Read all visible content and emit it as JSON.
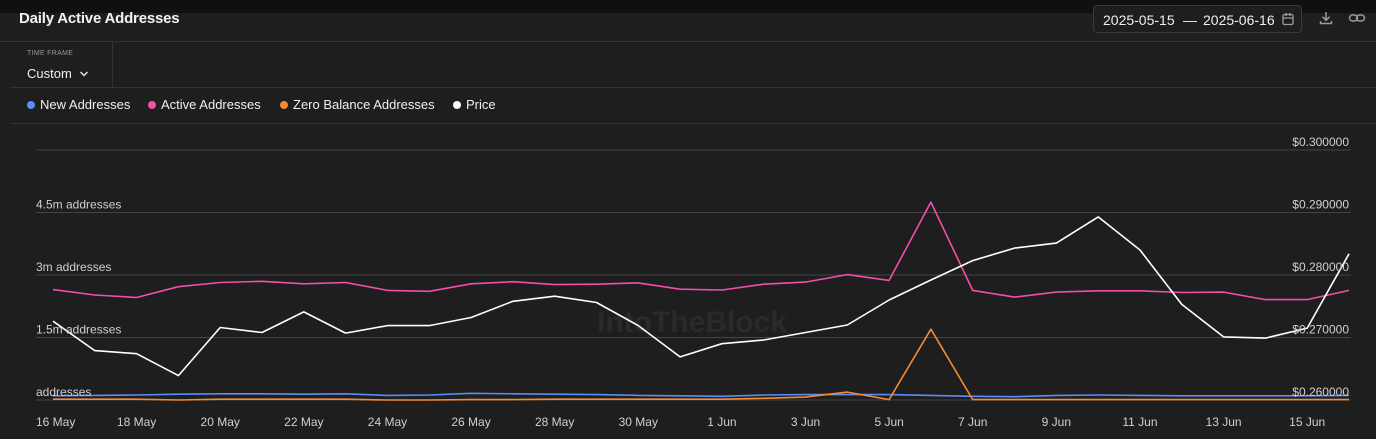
{
  "header": {
    "title": "Daily Active Addresses",
    "date_start": "2025-05-15",
    "date_separator": "—",
    "date_end": "2025-06-16",
    "icons": [
      "calendar-icon",
      "download-icon",
      "link-icon"
    ]
  },
  "timeframe": {
    "label": "TIME FRAME",
    "value": "Custom"
  },
  "legend": [
    {
      "name": "New Addresses",
      "color": "#5b8cf5"
    },
    {
      "name": "Active Addresses",
      "color": "#f24fa8"
    },
    {
      "name": "Zero Balance Addresses",
      "color": "#f58a33"
    },
    {
      "name": "Price",
      "color": "#ffffff"
    }
  ],
  "watermark": "IntoTheBlock",
  "chart_data": {
    "type": "line",
    "x": [
      "16 May",
      "17 May",
      "18 May",
      "19 May",
      "20 May",
      "21 May",
      "22 May",
      "23 May",
      "24 May",
      "25 May",
      "26 May",
      "27 May",
      "28 May",
      "29 May",
      "30 May",
      "31 May",
      "1 Jun",
      "2 Jun",
      "3 Jun",
      "4 Jun",
      "5 Jun",
      "6 Jun",
      "7 Jun",
      "8 Jun",
      "9 Jun",
      "10 Jun",
      "11 Jun",
      "12 Jun",
      "13 Jun",
      "14 Jun",
      "15 Jun",
      "16 Jun"
    ],
    "x_tick_labels": [
      "16 May",
      "18 May",
      "20 May",
      "22 May",
      "24 May",
      "26 May",
      "28 May",
      "30 May",
      "1 Jun",
      "3 Jun",
      "5 Jun",
      "7 Jun",
      "9 Jun",
      "11 Jun",
      "13 Jun",
      "15 Jun"
    ],
    "y_left": {
      "ticks": [
        0,
        1500000,
        3000000,
        4500000
      ],
      "tick_labels": [
        "addresses",
        "1.5m addresses",
        "3m addresses",
        "4.5m addresses"
      ],
      "range": [
        0,
        6000000
      ]
    },
    "y_right": {
      "ticks": [
        0.26,
        0.27,
        0.28,
        0.29,
        0.3
      ],
      "tick_labels": [
        "$0.260000",
        "$0.270000",
        "$0.280000",
        "$0.290000",
        "$0.300000"
      ],
      "range": [
        0.26,
        0.3
      ]
    },
    "grid": true,
    "legend_position": "top-left",
    "series": [
      {
        "name": "New Addresses",
        "axis": "left",
        "color": "#5b8cf5",
        "values": [
          100000,
          110000,
          120000,
          140000,
          150000,
          150000,
          140000,
          150000,
          110000,
          120000,
          160000,
          150000,
          140000,
          130000,
          110000,
          100000,
          90000,
          120000,
          130000,
          130000,
          130000,
          110000,
          90000,
          80000,
          110000,
          120000,
          110000,
          100000,
          100000,
          100000,
          100000,
          110000
        ]
      },
      {
        "name": "Active Addresses",
        "axis": "left",
        "color": "#f24fa8",
        "values": [
          2650000,
          2520000,
          2460000,
          2720000,
          2820000,
          2850000,
          2790000,
          2820000,
          2630000,
          2610000,
          2790000,
          2840000,
          2770000,
          2780000,
          2810000,
          2660000,
          2640000,
          2780000,
          2830000,
          3010000,
          2870000,
          4750000,
          2630000,
          2470000,
          2590000,
          2620000,
          2620000,
          2580000,
          2590000,
          2410000,
          2410000,
          2630000
        ]
      },
      {
        "name": "Zero Balance Addresses",
        "axis": "left",
        "color": "#f58a33",
        "values": [
          20000,
          20000,
          20000,
          0,
          20000,
          20000,
          20000,
          20000,
          0,
          0,
          10000,
          10000,
          20000,
          20000,
          20000,
          20000,
          20000,
          40000,
          70000,
          190000,
          10000,
          1700000,
          10000,
          10000,
          10000,
          10000,
          10000,
          10000,
          10000,
          10000,
          10000,
          10000
        ]
      },
      {
        "name": "Price",
        "axis": "right",
        "color": "#ffffff",
        "values": [
          0.2726,
          0.2679,
          0.2674,
          0.2639,
          0.2716,
          0.2708,
          0.2741,
          0.2707,
          0.2719,
          0.2719,
          0.2732,
          0.2758,
          0.2766,
          0.2756,
          0.2719,
          0.2669,
          0.269,
          0.2696,
          0.2708,
          0.272,
          0.276,
          0.2792,
          0.2823,
          0.2843,
          0.2851,
          0.2893,
          0.284,
          0.2753,
          0.2701,
          0.2699,
          0.2715,
          0.2834
        ]
      }
    ]
  }
}
